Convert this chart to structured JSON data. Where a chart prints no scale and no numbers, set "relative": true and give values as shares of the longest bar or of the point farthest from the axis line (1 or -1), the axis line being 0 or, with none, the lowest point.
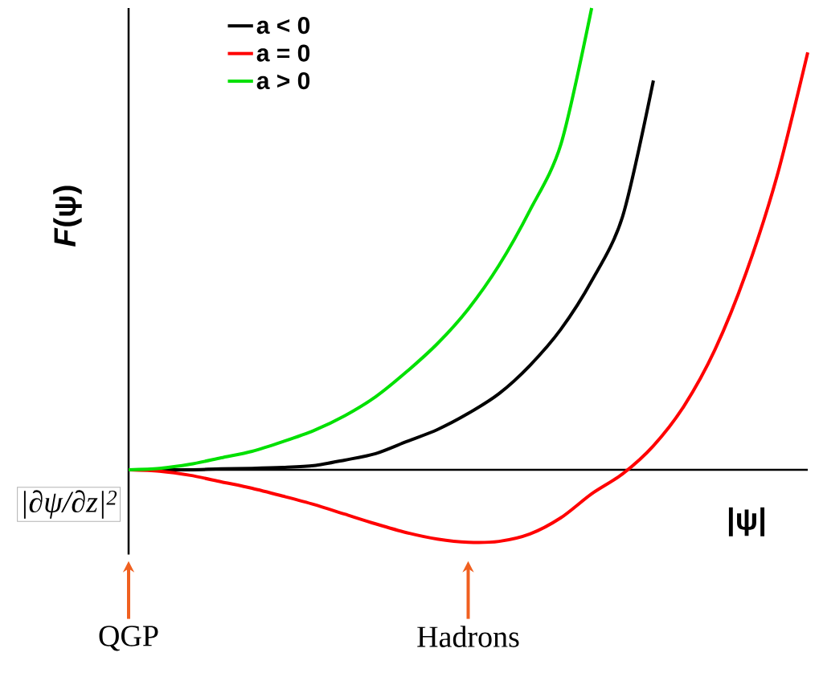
{
  "chart_data": {
    "type": "line",
    "relative": true,
    "xlabel": "|ψ|",
    "ylabel": "*F*(ψ)",
    "categories": [
      null,
      null,
      null,
      null,
      null,
      null,
      null,
      null,
      null,
      null,
      null,
      null,
      null,
      null,
      null,
      null,
      null,
      null,
      null,
      null,
      null,
      null,
      null
    ],
    "series": [
      {
        "name": "a < 0",
        "color": "#000000",
        "values": [
          0,
          0,
          0,
          0.002,
          0.003,
          0.005,
          0.009,
          0.021,
          0.035,
          0.061,
          0.087,
          0.122,
          0.165,
          0.226,
          0.304,
          0.409,
          0.548,
          0.843,
          null,
          null,
          null,
          null,
          null
        ]
      },
      {
        "name": "a = 0",
        "color": "#ff0000",
        "values": [
          0,
          -0.003,
          -0.012,
          -0.026,
          -0.04,
          -0.057,
          -0.075,
          -0.096,
          -0.117,
          -0.136,
          -0.15,
          -0.157,
          -0.155,
          -0.139,
          -0.104,
          -0.052,
          -0.009,
          0.052,
          0.139,
          0.261,
          0.426,
          0.635,
          0.904
        ]
      },
      {
        "name": "a > 0",
        "color": "#00e000",
        "values": [
          0,
          0.003,
          0.012,
          0.026,
          0.04,
          0.061,
          0.085,
          0.117,
          0.158,
          0.212,
          0.273,
          0.348,
          0.443,
          0.562,
          0.704,
          1,
          null,
          null,
          null,
          null,
          null,
          null,
          null
        ]
      }
    ],
    "legend": "top left",
    "marker": "none",
    "line_style": "solid",
    "annotations": [
      "QGP",
      "Hadrons",
      "|∂ψ/∂z|$^{2}$"
    ]
  }
}
